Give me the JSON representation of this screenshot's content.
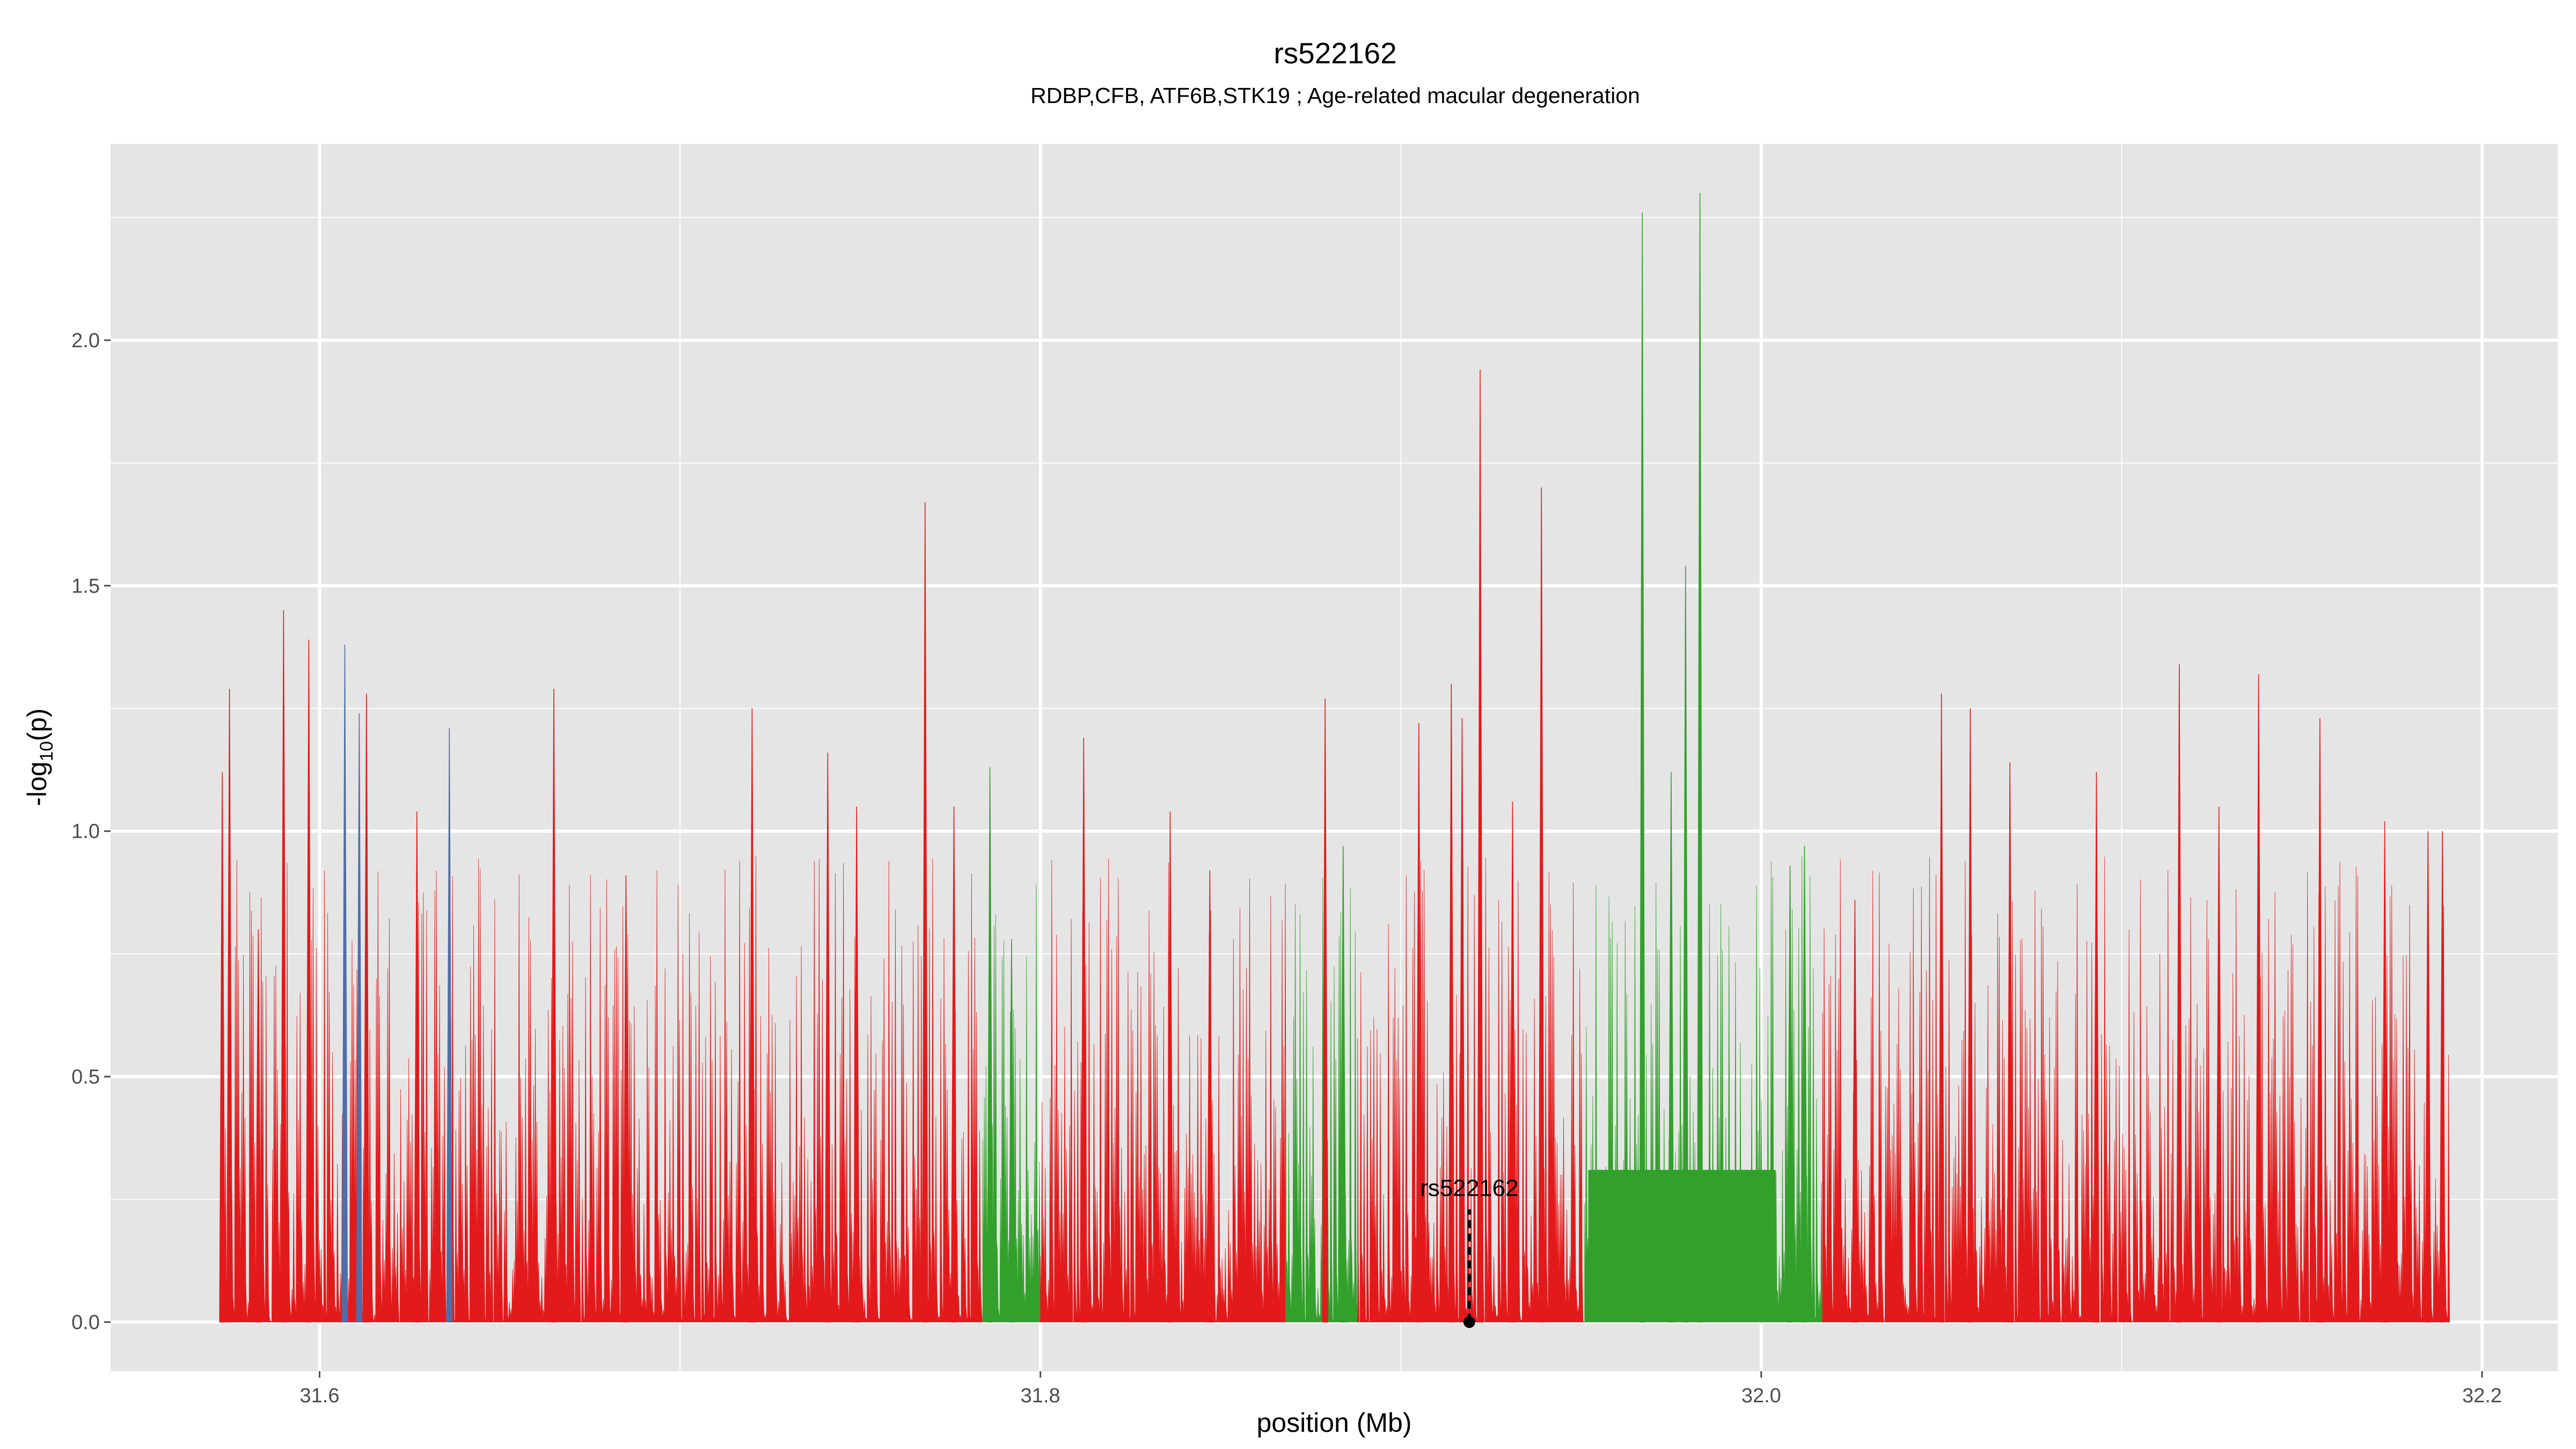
{
  "chart_data": {
    "type": "area",
    "title": "rs522162",
    "subtitle": "RDBP,CFB, ATF6B,STK19 ; Age-related macular degeneration",
    "xlabel": "position (Mb)",
    "ylabel_main": "-log",
    "ylabel_sub": "10",
    "ylabel_tail": "(p)",
    "xlim": [
      31.542,
      32.221
    ],
    "ylim": [
      -0.1,
      2.4
    ],
    "x_ticks": [
      31.6,
      31.8,
      32.0,
      32.2
    ],
    "x_tick_labels": [
      "31.6",
      "31.8",
      "32.0",
      "32.2"
    ],
    "y_ticks": [
      0.0,
      0.5,
      1.0,
      1.5,
      2.0
    ],
    "y_tick_labels": [
      "0.0",
      "0.5",
      "1.0",
      "1.5",
      "2.0"
    ],
    "grid": true,
    "panel_background": "#e5e5e5",
    "grid_color": "#ffffff",
    "colors": {
      "red": "#e31a1c",
      "green": "#33a02c",
      "orange": "#ff7f00",
      "blue": "#4f6ea8"
    },
    "lead_snp": {
      "label": "rs522162",
      "x": 31.919,
      "y": 0.0
    },
    "segments": [
      {
        "color": "red",
        "x_start": 31.573,
        "x_end": 31.784
      },
      {
        "color": "green",
        "x_start": 31.784,
        "x_end": 31.8
      },
      {
        "color": "red",
        "x_start": 31.8,
        "x_end": 31.868
      },
      {
        "color": "green",
        "x_start": 31.868,
        "x_end": 31.888
      },
      {
        "color": "red",
        "x_start": 31.888,
        "x_end": 31.951
      },
      {
        "color": "green",
        "x_start": 31.951,
        "x_end": 32.017
      },
      {
        "color": "red",
        "x_start": 32.017,
        "x_end": 32.191
      }
    ],
    "green_plateau": {
      "x_start": 31.952,
      "x_end": 32.004,
      "y": 0.31
    },
    "peaks": [
      {
        "x": 31.573,
        "y": 1.12,
        "color": "red"
      },
      {
        "x": 31.575,
        "y": 1.29,
        "color": "red"
      },
      {
        "x": 31.583,
        "y": 0.8,
        "color": "red"
      },
      {
        "x": 31.59,
        "y": 1.45,
        "color": "red"
      },
      {
        "x": 31.597,
        "y": 1.39,
        "color": "red"
      },
      {
        "x": 31.607,
        "y": 1.38,
        "color": "blue"
      },
      {
        "x": 31.611,
        "y": 1.24,
        "color": "blue"
      },
      {
        "x": 31.613,
        "y": 1.28,
        "color": "red"
      },
      {
        "x": 31.627,
        "y": 1.04,
        "color": "red"
      },
      {
        "x": 31.636,
        "y": 1.21,
        "color": "blue"
      },
      {
        "x": 31.665,
        "y": 1.29,
        "color": "red"
      },
      {
        "x": 31.685,
        "y": 0.91,
        "color": "red"
      },
      {
        "x": 31.72,
        "y": 1.25,
        "color": "red"
      },
      {
        "x": 31.741,
        "y": 1.16,
        "color": "red"
      },
      {
        "x": 31.749,
        "y": 1.05,
        "color": "red"
      },
      {
        "x": 31.768,
        "y": 1.67,
        "color": "red"
      },
      {
        "x": 31.776,
        "y": 1.05,
        "color": "red"
      },
      {
        "x": 31.786,
        "y": 1.13,
        "color": "green"
      },
      {
        "x": 31.792,
        "y": 0.78,
        "color": "green"
      },
      {
        "x": 31.812,
        "y": 1.19,
        "color": "red"
      },
      {
        "x": 31.836,
        "y": 1.04,
        "color": "red"
      },
      {
        "x": 31.847,
        "y": 0.92,
        "color": "red"
      },
      {
        "x": 31.879,
        "y": 1.27,
        "color": "red"
      },
      {
        "x": 31.884,
        "y": 0.97,
        "color": "green"
      },
      {
        "x": 31.905,
        "y": 1.22,
        "color": "red"
      },
      {
        "x": 31.914,
        "y": 1.3,
        "color": "red"
      },
      {
        "x": 31.917,
        "y": 1.23,
        "color": "red"
      },
      {
        "x": 31.922,
        "y": 1.94,
        "color": "red"
      },
      {
        "x": 31.931,
        "y": 1.06,
        "color": "red"
      },
      {
        "x": 31.939,
        "y": 1.7,
        "color": "red"
      },
      {
        "x": 31.967,
        "y": 2.26,
        "color": "green"
      },
      {
        "x": 31.975,
        "y": 1.12,
        "color": "green"
      },
      {
        "x": 31.979,
        "y": 1.54,
        "color": "green"
      },
      {
        "x": 31.983,
        "y": 2.3,
        "color": "green"
      },
      {
        "x": 32.008,
        "y": 0.93,
        "color": "green"
      },
      {
        "x": 32.012,
        "y": 0.97,
        "color": "green"
      },
      {
        "x": 32.026,
        "y": 0.86,
        "color": "red"
      },
      {
        "x": 32.05,
        "y": 1.28,
        "color": "red"
      },
      {
        "x": 32.058,
        "y": 1.25,
        "color": "red"
      },
      {
        "x": 32.069,
        "y": 1.14,
        "color": "red"
      },
      {
        "x": 32.093,
        "y": 1.12,
        "color": "red"
      },
      {
        "x": 32.116,
        "y": 1.34,
        "color": "red"
      },
      {
        "x": 32.127,
        "y": 1.05,
        "color": "red"
      },
      {
        "x": 32.138,
        "y": 1.32,
        "color": "red"
      },
      {
        "x": 32.155,
        "y": 1.23,
        "color": "red"
      },
      {
        "x": 32.173,
        "y": 1.02,
        "color": "red"
      },
      {
        "x": 32.185,
        "y": 1.0,
        "color": "red"
      },
      {
        "x": 32.189,
        "y": 1.0,
        "color": "red"
      }
    ]
  }
}
